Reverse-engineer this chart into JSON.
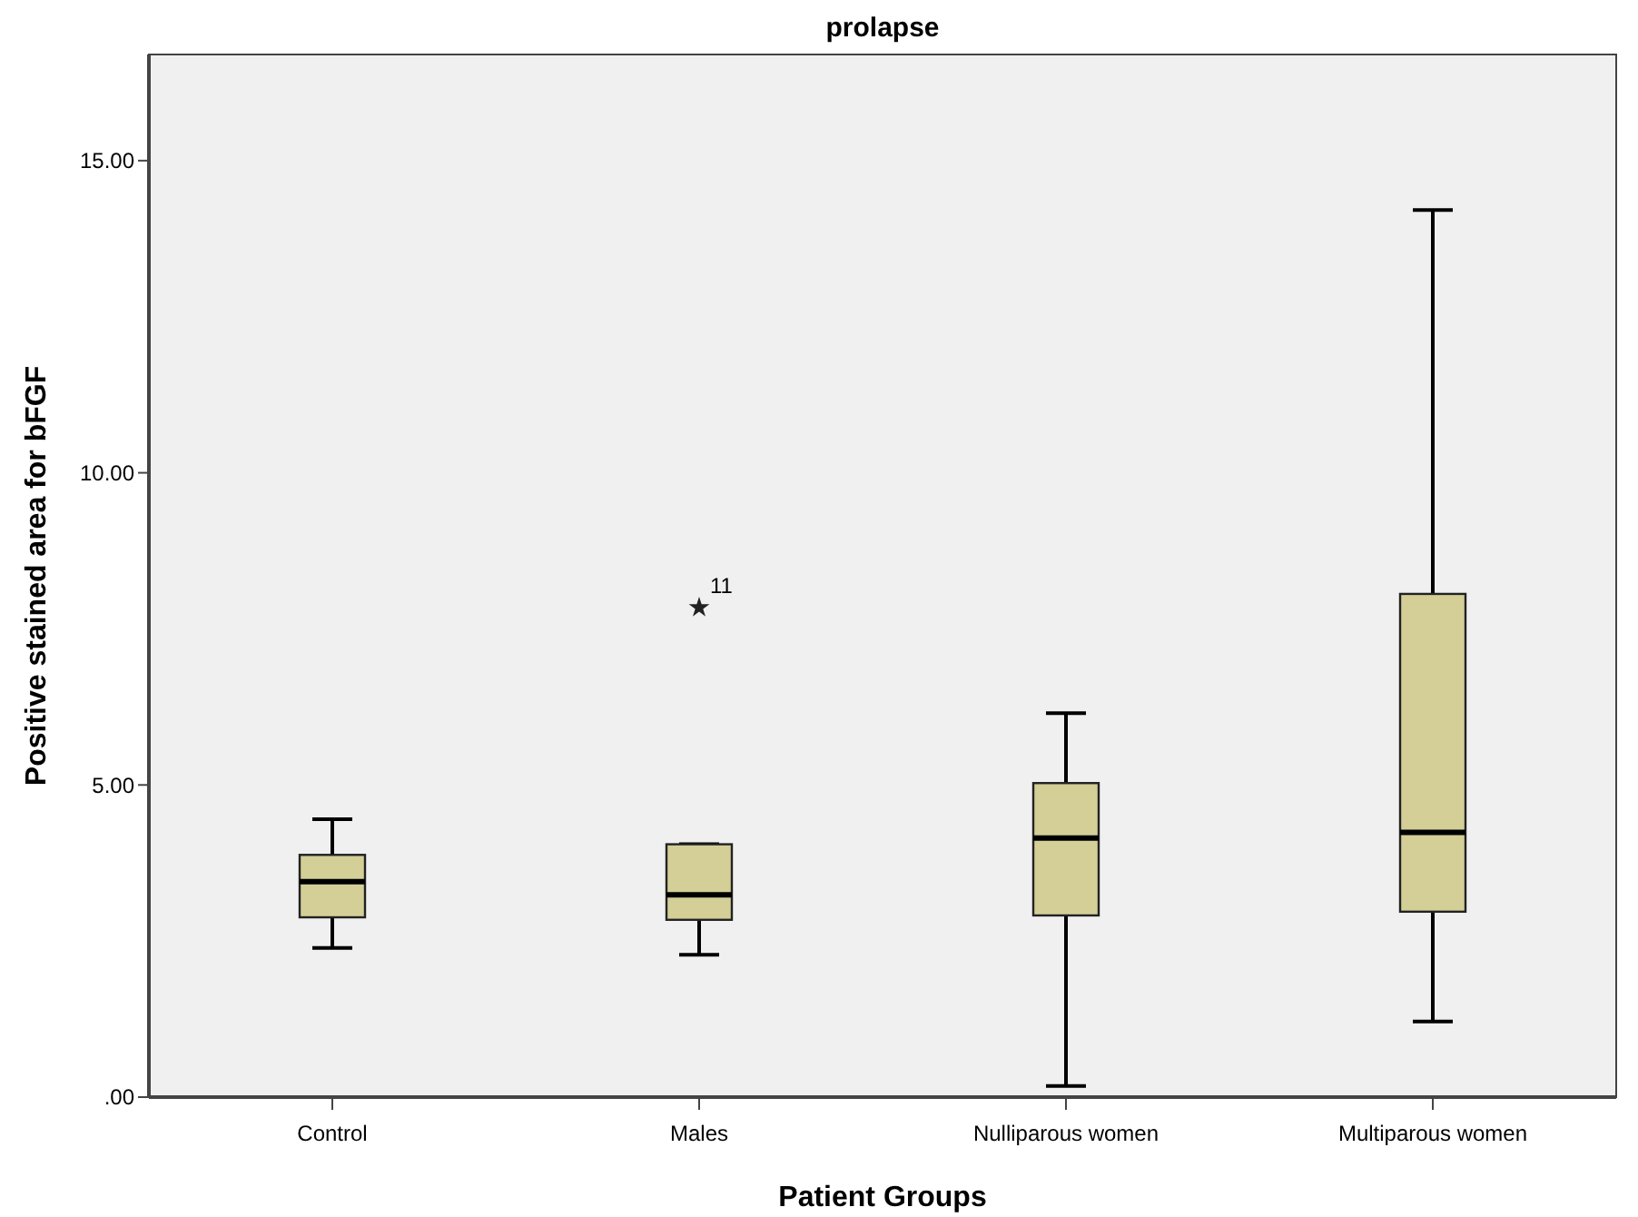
{
  "chart_data": {
    "type": "box",
    "title": "prolapse",
    "xlabel": "Patient Groups",
    "ylabel": "Positive stained area for bFGF",
    "categories": [
      "Control",
      "Males",
      "Nulliparous women",
      "Multiparous women"
    ],
    "color": "#d3cf96",
    "boxes": [
      {
        "low": 2.39,
        "q1": 2.88,
        "median": 3.45,
        "q3": 3.88,
        "high": 4.45
      },
      {
        "low": 2.28,
        "q1": 2.84,
        "median": 3.24,
        "q3": 4.05,
        "high": 4.05,
        "outliers": [
          7.84
        ]
      },
      {
        "low": 0.18,
        "q1": 2.91,
        "median": 4.15,
        "q3": 5.03,
        "high": 6.15
      },
      {
        "low": 1.21,
        "q1": 2.97,
        "median": 4.24,
        "q3": 8.06,
        "high": 14.21
      }
    ],
    "marker": "star",
    "annotations": [
      "11"
    ],
    "ylim": [
      0,
      16.7
    ],
    "yticks": [
      {
        "value": 0,
        "label": ".00"
      },
      {
        "value": 5,
        "label": "5.00"
      },
      {
        "value": 10,
        "label": "10.00"
      },
      {
        "value": 15,
        "label": "15.00"
      }
    ],
    "grid": false
  }
}
